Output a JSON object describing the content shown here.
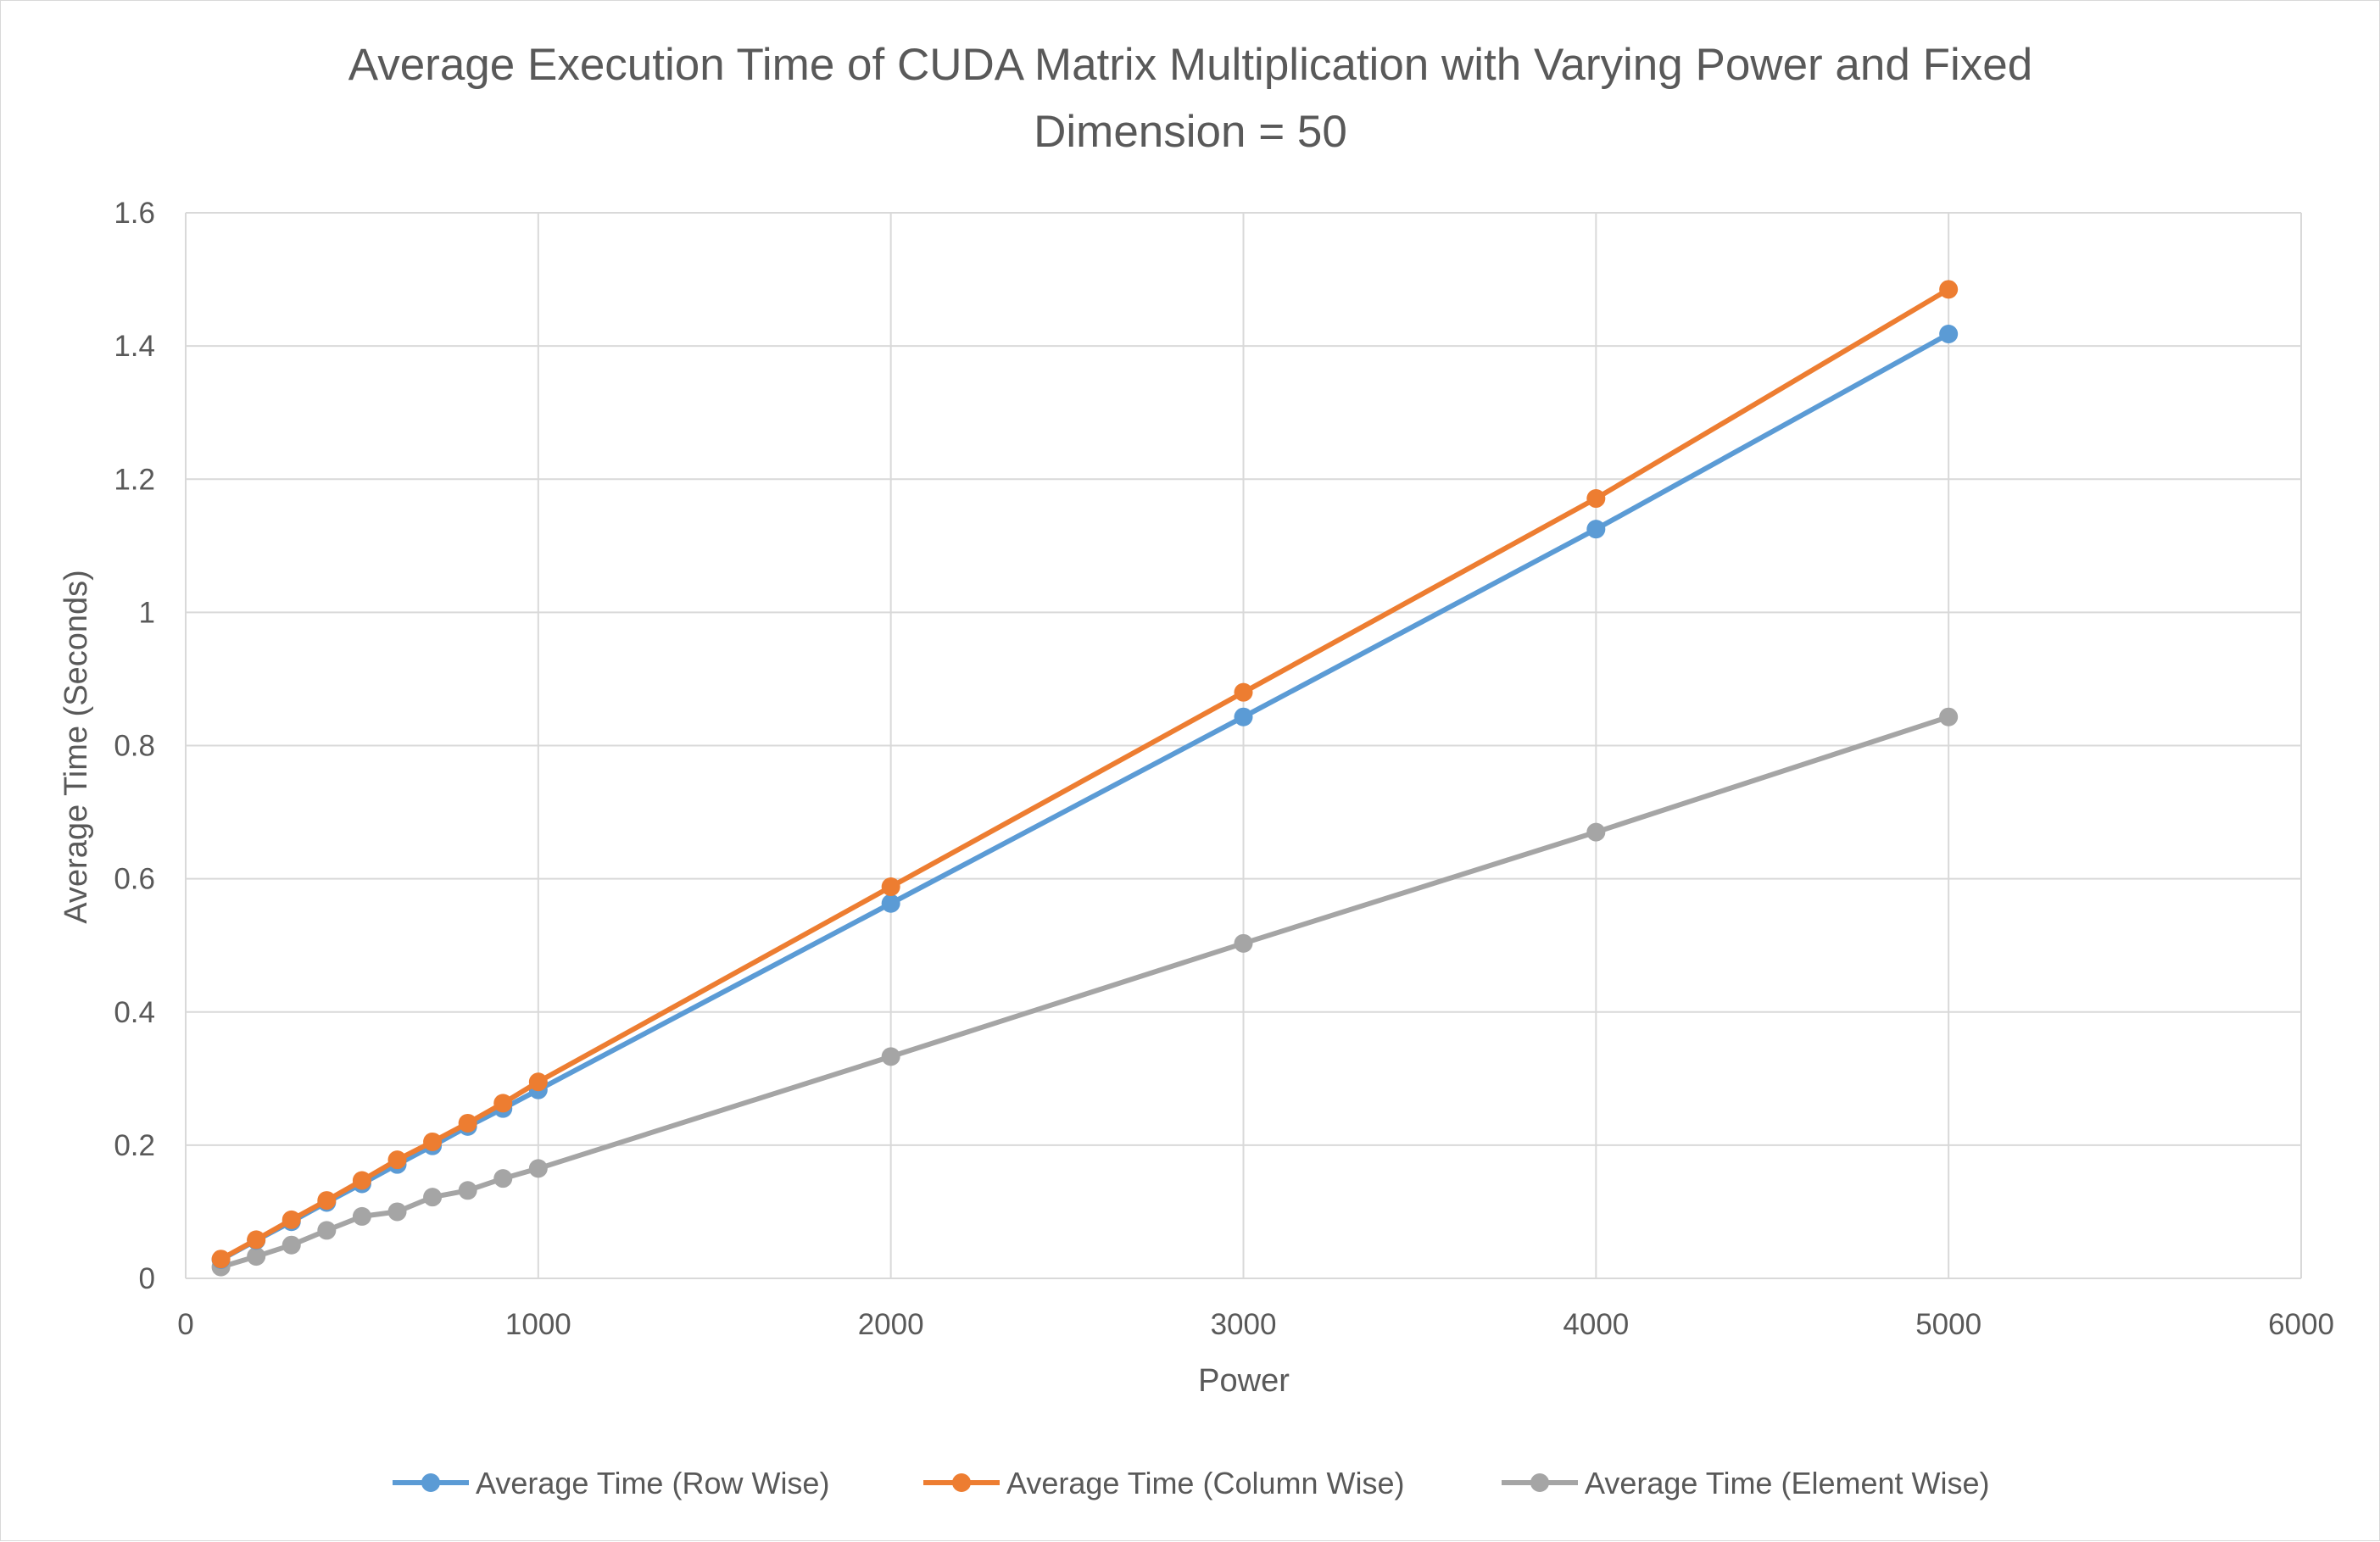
{
  "chart_data": {
    "type": "line",
    "title": "Average Execution Time of CUDA Matrix Multiplication with Varying Power and Fixed Dimension = 50",
    "title_lines": [
      "Average Execution Time of CUDA Matrix Multiplication with Varying Power and Fixed",
      "Dimension = 50"
    ],
    "xlabel": "Power",
    "ylabel": "Average Time (Seconds)",
    "xlim": [
      0,
      6000
    ],
    "ylim": [
      0,
      1.6
    ],
    "x_ticks": [
      "0",
      "1000",
      "2000",
      "3000",
      "4000",
      "5000",
      "6000"
    ],
    "y_ticks": [
      "0",
      "0.2",
      "0.4",
      "0.6",
      "0.8",
      "1",
      "1.2",
      "1.4",
      "1.6"
    ],
    "grid": true,
    "legend_position": "bottom",
    "x": [
      100,
      200,
      300,
      400,
      500,
      600,
      700,
      800,
      900,
      1000,
      2000,
      3000,
      4000,
      5000
    ],
    "series": [
      {
        "name": "Average Time (Row Wise)",
        "color": "#5b9bd5",
        "values": [
          0.028,
          0.057,
          0.085,
          0.114,
          0.142,
          0.171,
          0.199,
          0.228,
          0.255,
          0.283,
          0.563,
          0.843,
          1.125,
          1.418
        ]
      },
      {
        "name": "Average Time (Column Wise)",
        "color": "#ed7d31",
        "values": [
          0.029,
          0.058,
          0.088,
          0.117,
          0.147,
          0.178,
          0.205,
          0.233,
          0.263,
          0.295,
          0.588,
          0.88,
          1.171,
          1.485
        ]
      },
      {
        "name": "Average Time (Element Wise)",
        "color": "#a5a5a5",
        "values": [
          0.017,
          0.033,
          0.05,
          0.072,
          0.093,
          0.1,
          0.122,
          0.132,
          0.15,
          0.165,
          0.333,
          0.503,
          0.67,
          0.843
        ]
      }
    ]
  }
}
